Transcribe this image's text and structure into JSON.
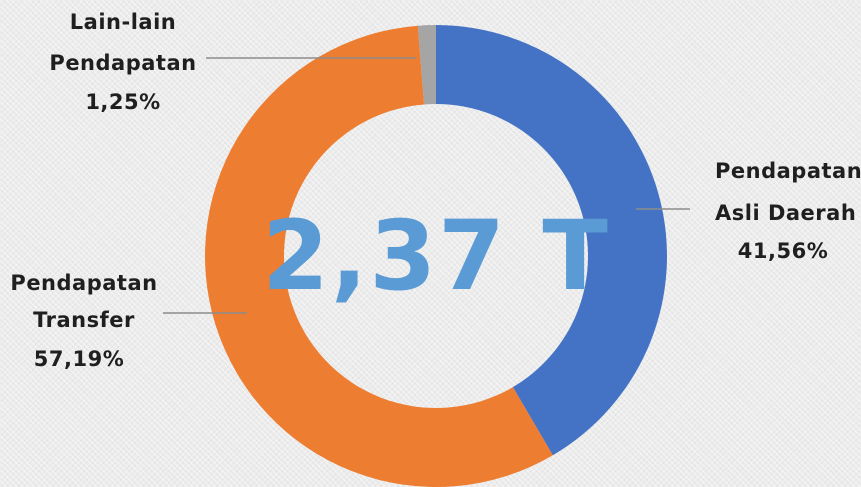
{
  "chart_data": {
    "type": "pie",
    "variant": "donut",
    "center_label": "2,37 T",
    "categories": [
      "Pendapatan Asli Daerah",
      "Pendapatan Transfer",
      "Lain-lain Pendapatan"
    ],
    "values": [
      41.56,
      57.19,
      1.25
    ],
    "value_labels": [
      "41,56%",
      "57,19%",
      "1,25%"
    ],
    "label_lines": [
      [
        "Pendapatan",
        "Asli Daerah",
        "41,56%"
      ],
      [
        "Pendapatan",
        "Transfer",
        "57,19%"
      ],
      [
        "Lain-lain",
        "Pendapatan",
        "1,25%"
      ]
    ],
    "colors": [
      "#4472c4",
      "#ed7d31",
      "#a5a5a5"
    ],
    "start": "12 o'clock",
    "direction": "clockwise",
    "legend": "none"
  }
}
